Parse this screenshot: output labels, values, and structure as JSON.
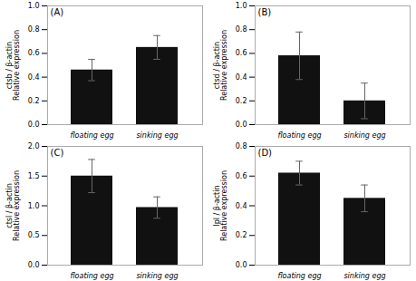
{
  "chart_data": [
    {
      "type": "bar",
      "annotations": [
        "(A)"
      ],
      "ylabel": "ctsb / β-actin\nRelative expression",
      "categories": [
        "floating egg",
        "sinking egg"
      ],
      "values": [
        0.46,
        0.65
      ],
      "errors": [
        0.09,
        0.1
      ],
      "color": "#111111",
      "ylim": [
        0.0,
        1.0
      ],
      "yticks": [
        {
          "value": 0.0,
          "label": "0.0"
        },
        0.2,
        0.4,
        0.6,
        0.8,
        {
          "value": 1.0,
          "label": "1.0"
        }
      ]
    },
    {
      "type": "bar",
      "annotations": [
        "(B)"
      ],
      "ylabel": "ctsd / β-actin\nRelative expression",
      "categories": [
        "floating egg",
        "sinking egg"
      ],
      "values": [
        0.58,
        0.2
      ],
      "errors": [
        0.2,
        0.15
      ],
      "color": "#111111",
      "ylim": [
        0.0,
        1.0
      ],
      "yticks": [
        {
          "value": 0.0,
          "label": "0.0"
        },
        0.2,
        0.4,
        0.6,
        0.8,
        {
          "value": 1.0,
          "label": "1.0"
        }
      ]
    },
    {
      "type": "bar",
      "annotations": [
        "(C)"
      ],
      "ylabel": "ctsl / β-actin\nRelative expression",
      "categories": [
        "floating egg",
        "sinking egg"
      ],
      "values": [
        1.5,
        0.97
      ],
      "errors": [
        0.28,
        0.18
      ],
      "color": "#111111",
      "ylim": [
        0.0,
        2.0
      ],
      "yticks": [
        {
          "value": 0.0,
          "label": "0.0"
        },
        0.5,
        {
          "value": 1.0,
          "label": "1.0"
        },
        1.5,
        {
          "value": 2.0,
          "label": "2.0"
        }
      ]
    },
    {
      "type": "bar",
      "annotations": [
        "(D)"
      ],
      "ylabel": "lpl / β-actin\nRelative expression",
      "categories": [
        "floating egg",
        "sinking egg"
      ],
      "values": [
        0.62,
        0.45
      ],
      "errors": [
        0.08,
        0.09
      ],
      "color": "#111111",
      "ylim": [
        0.0,
        0.8
      ],
      "yticks": [
        {
          "value": 0.0,
          "label": "0.0"
        },
        0.2,
        0.4,
        0.6,
        0.8
      ]
    }
  ]
}
